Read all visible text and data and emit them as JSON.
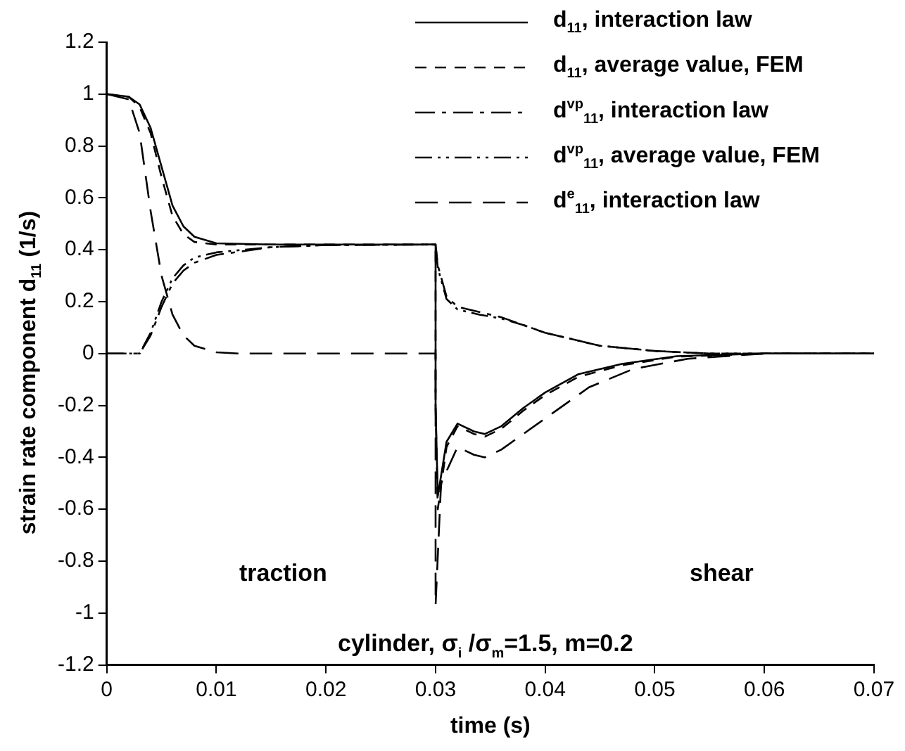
{
  "chart_data": {
    "type": "line",
    "xlabel": "time (s)",
    "ylabel": "strain rate component d$_{11}$  (1/s)",
    "xlim": [
      0,
      0.07
    ],
    "xticks": [
      0,
      0.01,
      0.02,
      0.03,
      0.04,
      0.05,
      0.06,
      0.07
    ],
    "ylim": [
      -1.2,
      1.2
    ],
    "yticks": [
      -1.2,
      -1,
      -0.8,
      -0.6,
      -0.4,
      -0.2,
      0,
      0.2,
      0.4,
      0.6,
      0.8,
      1,
      1.2
    ],
    "grid": false,
    "legend": "top right",
    "marker": "none",
    "annotations": [
      "traction",
      "shear",
      "cylinder, σ$_{i}$ /σ$_{m}$=1.5, m=0.2"
    ],
    "series": [
      {
        "name": "d$_{11}$, interaction law",
        "color": "#000000",
        "line_style": "solid",
        "x": [
          0,
          0.002,
          0.003,
          0.004,
          0.005,
          0.006,
          0.007,
          0.008,
          0.01,
          0.015,
          0.03,
          0.03,
          0.0302,
          0.031,
          0.032,
          0.0335,
          0.0345,
          0.036,
          0.038,
          0.04,
          0.043,
          0.047,
          0.052,
          0.06,
          0.07
        ],
        "values": [
          1,
          0.99,
          0.96,
          0.87,
          0.72,
          0.57,
          0.49,
          0.45,
          0.425,
          0.42,
          0.42,
          -0.2,
          -0.55,
          -0.34,
          -0.27,
          -0.3,
          -0.31,
          -0.28,
          -0.21,
          -0.15,
          -0.08,
          -0.04,
          -0.01,
          0,
          0
        ]
      },
      {
        "name": "d$_{11}$, average value, FEM",
        "color": "#000000",
        "line_style": "dashed",
        "x": [
          0,
          0.002,
          0.003,
          0.004,
          0.005,
          0.006,
          0.007,
          0.008,
          0.01,
          0.015,
          0.03,
          0.03,
          0.0302,
          0.031,
          0.032,
          0.0335,
          0.0345,
          0.036,
          0.038,
          0.04,
          0.043,
          0.047,
          0.052,
          0.06,
          0.07
        ],
        "values": [
          1,
          0.99,
          0.95,
          0.85,
          0.68,
          0.53,
          0.46,
          0.43,
          0.42,
          0.42,
          0.42,
          -0.2,
          -0.6,
          -0.36,
          -0.28,
          -0.31,
          -0.32,
          -0.29,
          -0.22,
          -0.16,
          -0.09,
          -0.045,
          -0.012,
          0,
          0
        ]
      },
      {
        "name": "d$^{vp}$$_{11}$, interaction law",
        "color": "#000000",
        "line_style": "dashdot",
        "x": [
          0,
          0.003,
          0.004,
          0.005,
          0.006,
          0.007,
          0.008,
          0.01,
          0.015,
          0.02,
          0.03,
          0.0302,
          0.031,
          0.032,
          0.034,
          0.036,
          0.038,
          0.04,
          0.045,
          0.05,
          0.055,
          0.07
        ],
        "values": [
          0,
          0,
          0.07,
          0.18,
          0.27,
          0.32,
          0.35,
          0.38,
          0.41,
          0.418,
          0.42,
          0.34,
          0.22,
          0.18,
          0.16,
          0.14,
          0.11,
          0.08,
          0.03,
          0.01,
          0,
          0
        ]
      },
      {
        "name": "d$^{vp}$$_{11}$, average value, FEM",
        "color": "#000000",
        "line_style": "dashdotdot",
        "x": [
          0,
          0.003,
          0.004,
          0.005,
          0.006,
          0.007,
          0.008,
          0.01,
          0.015,
          0.02,
          0.03,
          0.0302,
          0.031,
          0.032,
          0.034,
          0.036,
          0.038,
          0.04,
          0.045,
          0.05,
          0.055,
          0.07
        ],
        "values": [
          0,
          0,
          0.08,
          0.2,
          0.29,
          0.34,
          0.37,
          0.39,
          0.41,
          0.418,
          0.42,
          0.33,
          0.21,
          0.17,
          0.15,
          0.135,
          0.11,
          0.08,
          0.03,
          0.01,
          0,
          0
        ]
      },
      {
        "name": "d$^{e}$$_{11}$, interaction law",
        "color": "#000000",
        "line_style": "longdashed",
        "x": [
          0,
          0.002,
          0.003,
          0.004,
          0.005,
          0.006,
          0.007,
          0.008,
          0.01,
          0.012,
          0.03,
          0.03,
          0.0305,
          0.032,
          0.0335,
          0.0345,
          0.036,
          0.038,
          0.04,
          0.044,
          0.048,
          0.053,
          0.06,
          0.07
        ],
        "values": [
          1,
          0.98,
          0.85,
          0.55,
          0.3,
          0.15,
          0.07,
          0.03,
          0.005,
          0,
          0,
          -0.97,
          -0.5,
          -0.36,
          -0.39,
          -0.4,
          -0.37,
          -0.31,
          -0.25,
          -0.13,
          -0.06,
          -0.02,
          0,
          0
        ]
      }
    ]
  }
}
